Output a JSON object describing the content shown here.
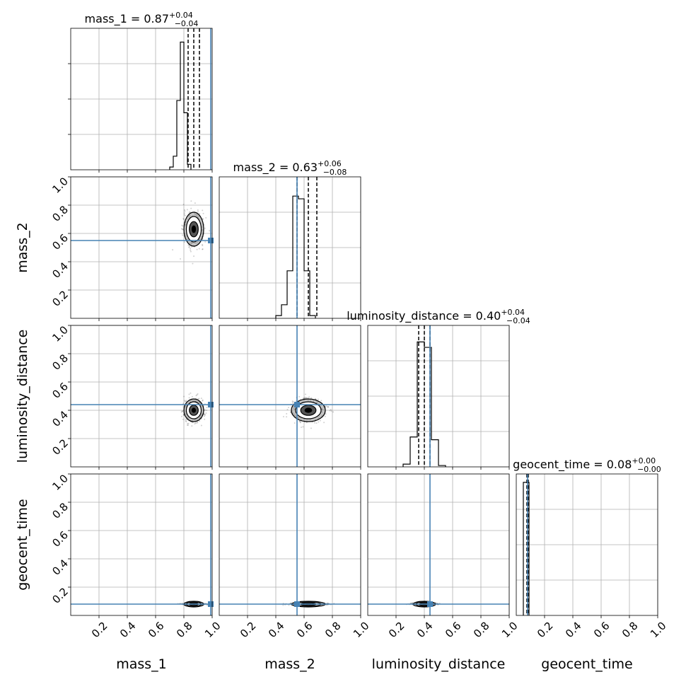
{
  "chart_data": {
    "type": "corner",
    "parameters": [
      "mass_1",
      "mass_2",
      "luminosity_distance",
      "geocent_time"
    ],
    "axis_range": [
      0,
      1
    ],
    "tick_values": [
      0.2,
      0.4,
      0.6,
      0.8,
      1.0
    ],
    "tick_labels": [
      "0.2",
      "0.4",
      "0.6",
      "0.8",
      "1.0"
    ],
    "grid": true,
    "truth_color": "#4682b4",
    "truths": {
      "mass_1": 0.99,
      "mass_2": 0.55,
      "luminosity_distance": 0.44,
      "geocent_time": 0.08
    },
    "titles": [
      {
        "param": "mass_1",
        "name": "mass_1",
        "value": "0.87",
        "plus": "+0.04",
        "minus": "−0.04"
      },
      {
        "param": "mass_2",
        "name": "mass_2",
        "value": "0.63",
        "plus": "+0.06",
        "minus": "−0.08"
      },
      {
        "param": "luminosity_distance",
        "name": "luminosity_distance",
        "value": "0.40",
        "plus": "+0.04",
        "minus": "−0.04"
      },
      {
        "param": "geocent_time",
        "name": "geocent_time",
        "value": "0.08",
        "plus": "+0.00",
        "minus": "−0.00"
      }
    ],
    "histograms": [
      {
        "param": "mass_1",
        "bin_width": 0.025,
        "bin_start": 0.7,
        "heights": [
          0.02,
          0.1,
          0.51,
          0.94,
          0.42,
          0.04
        ],
        "quantiles": [
          0.83,
          0.87,
          0.91
        ]
      },
      {
        "param": "mass_2",
        "bin_width": 0.04,
        "bin_start": 0.4,
        "heights": [
          0.02,
          0.1,
          0.35,
          0.9,
          0.88,
          0.35,
          0.02
        ],
        "quantiles": [
          0.55,
          0.63,
          0.69
        ]
      },
      {
        "param": "luminosity_distance",
        "bin_width": 0.05,
        "bin_start": 0.25,
        "heights": [
          0.02,
          0.22,
          0.92,
          0.88,
          0.2,
          0.01
        ],
        "quantiles": [
          0.36,
          0.4,
          0.44
        ]
      },
      {
        "param": "geocent_time",
        "bin_width": 0.02,
        "bin_start": 0.05,
        "heights": [
          0.98,
          0.98
        ],
        "quantiles": [
          0.075,
          0.08,
          0.085
        ]
      }
    ],
    "posterior_mean": {
      "mass_1": 0.87,
      "mass_2": 0.63,
      "luminosity_distance": 0.4,
      "geocent_time": 0.08
    },
    "posterior_sd": {
      "mass_1": 0.035,
      "mass_2": 0.06,
      "luminosity_distance": 0.04,
      "geocent_time": 0.004
    }
  }
}
